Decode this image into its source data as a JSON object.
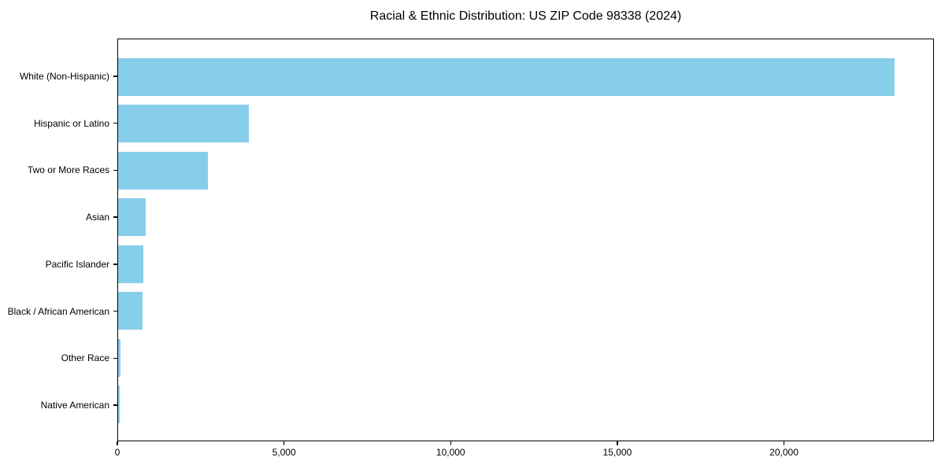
{
  "chart_data": {
    "type": "bar",
    "orientation": "horizontal",
    "title": "Racial & Ethnic Distribution: US ZIP Code 98338 (2024)",
    "categories": [
      "White (Non-Hispanic)",
      "Hispanic or Latino",
      "Two or More Races",
      "Asian",
      "Pacific Islander",
      "Black / African American",
      "Other Race",
      "Native American"
    ],
    "values": [
      23340,
      3940,
      2690,
      825,
      765,
      740,
      80,
      50
    ],
    "xlabel": "",
    "ylabel": "",
    "xlim": [
      0,
      24500
    ],
    "x_ticks": [
      {
        "value": 0,
        "label": "0"
      },
      {
        "value": 5000,
        "label": "5,000"
      },
      {
        "value": 10000,
        "label": "10,000"
      },
      {
        "value": 15000,
        "label": "15,000"
      },
      {
        "value": 20000,
        "label": "20,000"
      }
    ],
    "grid": false,
    "legend": null,
    "bar_color": "#87CEEB",
    "background_color": "#ffffff",
    "text_color": "#000000"
  }
}
